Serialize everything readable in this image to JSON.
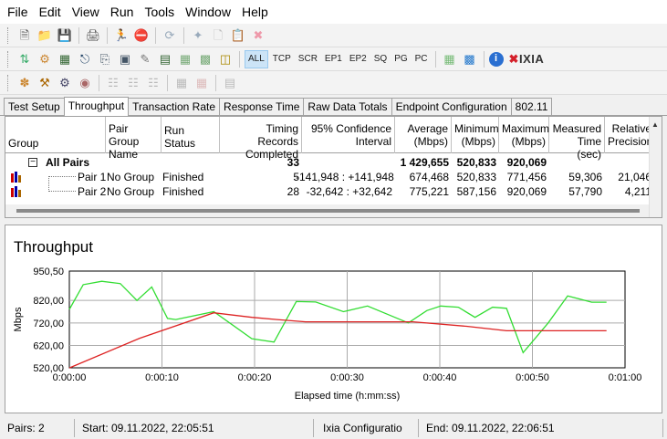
{
  "menu": [
    "File",
    "Edit",
    "View",
    "Run",
    "Tools",
    "Window",
    "Help"
  ],
  "toolbar2": {
    "protocols": [
      "ALL",
      "TCP",
      "SCR",
      "EP1",
      "EP2",
      "SQ",
      "PG",
      "PC"
    ],
    "brand": "IXIA"
  },
  "tabs": [
    "Test Setup",
    "Throughput",
    "Transaction Rate",
    "Response Time",
    "Raw Data Totals",
    "Endpoint Configuration",
    "802.11"
  ],
  "active_tab": "Throughput",
  "grid": {
    "headers": {
      "group": "Group",
      "pair_group_name": [
        "Pair Group",
        "Name"
      ],
      "run_status": "Run Status",
      "timing_records": [
        "Timing Records",
        "Completed"
      ],
      "confidence": [
        "95% Confidence",
        "Interval"
      ],
      "average": [
        "Average",
        "(Mbps)"
      ],
      "minimum": [
        "Minimum",
        "(Mbps)"
      ],
      "maximum": [
        "Maximum",
        "(Mbps)"
      ],
      "measured_time": [
        "Measured",
        "Time (sec)"
      ],
      "relative_precision": [
        "Relative",
        "Precision"
      ]
    },
    "all_pairs": {
      "label": "All Pairs",
      "records": "33",
      "average": "1 429,655",
      "minimum": "520,833",
      "maximum": "920,069"
    },
    "rows": [
      {
        "pair": "Pair 1",
        "group": "No Group",
        "status": "Finished",
        "records": "5",
        "confidence": "-141,948 : +141,948",
        "average": "674,468",
        "minimum": "520,833",
        "maximum": "771,456",
        "time": "59,306",
        "precision": "21,046"
      },
      {
        "pair": "Pair 2",
        "group": "No Group",
        "status": "Finished",
        "records": "28",
        "confidence": "-32,642 : +32,642",
        "average": "775,221",
        "minimum": "587,156",
        "maximum": "920,069",
        "time": "57,790",
        "precision": "4,211"
      }
    ]
  },
  "chart_data": {
    "type": "line",
    "title": "Throughput",
    "xlabel": "Elapsed time (h:mm:ss)",
    "ylabel": "Mbps",
    "xlim": [
      0,
      60
    ],
    "ylim": [
      520.5,
      950.5
    ],
    "x_ticks": [
      "0:00:00",
      "0:00:10",
      "0:00:20",
      "0:00:30",
      "0:00:40",
      "0:00:50",
      "0:01:00"
    ],
    "y_ticks": [
      "950,50",
      "820,00",
      "720,00",
      "620,00",
      "520,00"
    ],
    "y_tick_values": [
      950.5,
      820,
      720,
      620,
      520
    ],
    "grid": true,
    "series": [
      {
        "color": "#33dd33",
        "x": [
          0,
          1.5,
          3.5,
          5.5,
          7.3,
          8.9,
          10.6,
          11.5,
          15.6,
          19.7,
          22.1,
          24.5,
          26.6,
          29.6,
          32.2,
          36.6,
          38.6,
          40.1,
          42.0,
          43.8,
          45.7,
          47.2,
          49.0,
          51.7,
          53.8,
          56.4,
          58.0
        ],
        "y": [
          780,
          890,
          905,
          895,
          820,
          880,
          740,
          735,
          770,
          650,
          635,
          815,
          813,
          770,
          795,
          720,
          775,
          795,
          790,
          745,
          790,
          785,
          588,
          720,
          840,
          812,
          812
        ]
      },
      {
        "color": "#dd2222",
        "x": [
          0,
          7.6,
          15.6,
          19.7,
          22.4,
          25.5,
          29.6,
          37.1,
          42.9,
          47.2,
          58.0
        ],
        "y": [
          520,
          652,
          765,
          745,
          735,
          725,
          725,
          725,
          705,
          685,
          685
        ]
      }
    ]
  },
  "status": {
    "pairs": "Pairs: 2",
    "start": "Start: 09.11.2022, 22:05:51",
    "config": "Ixia Configuratio",
    "end": "End: 09.11.2022, 22:06:51"
  }
}
